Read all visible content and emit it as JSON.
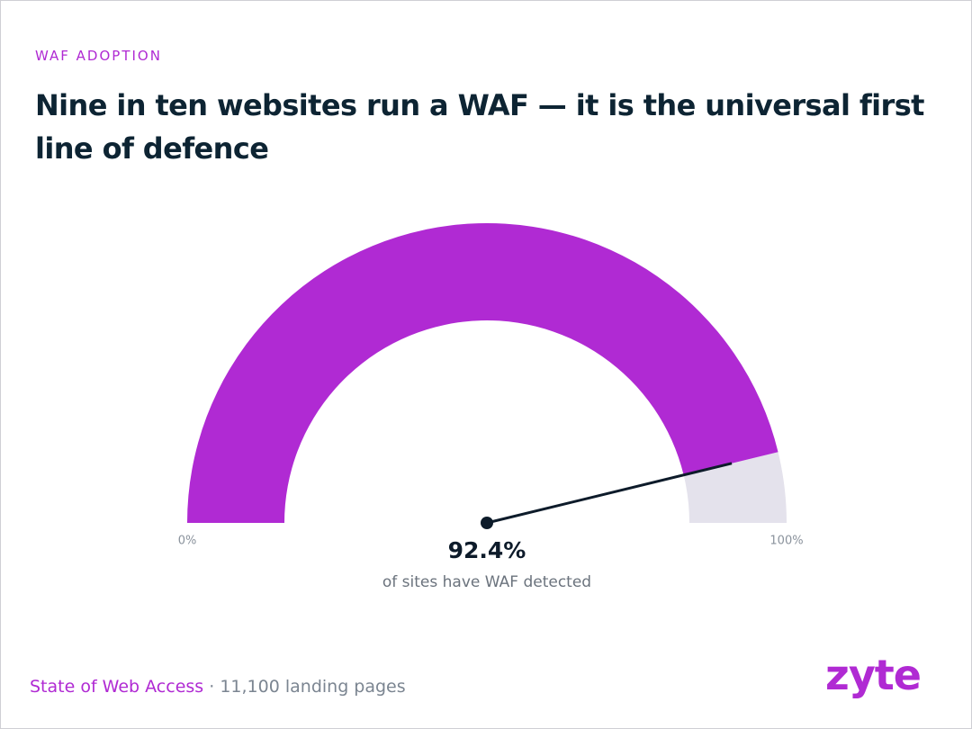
{
  "chart_data": {
    "type": "gauge",
    "eyebrow": "WAF ADOPTION",
    "title": "Nine in ten websites run a WAF — it is the universal first line of defence",
    "value": 92.4,
    "value_label": "92.4%",
    "caption": "of sites have WAF detected",
    "ylim": [
      0,
      100
    ],
    "yticks": [
      {
        "value": 0,
        "label": "0%"
      },
      {
        "value": 100,
        "label": "100%"
      }
    ],
    "color": "#b02ad3",
    "track_color": "#e4e2ec",
    "needle_color": "#0d1b2a",
    "footer": {
      "source": "State of Web Access",
      "detail": "· 11,100 landing pages"
    },
    "logo": "zyte"
  }
}
